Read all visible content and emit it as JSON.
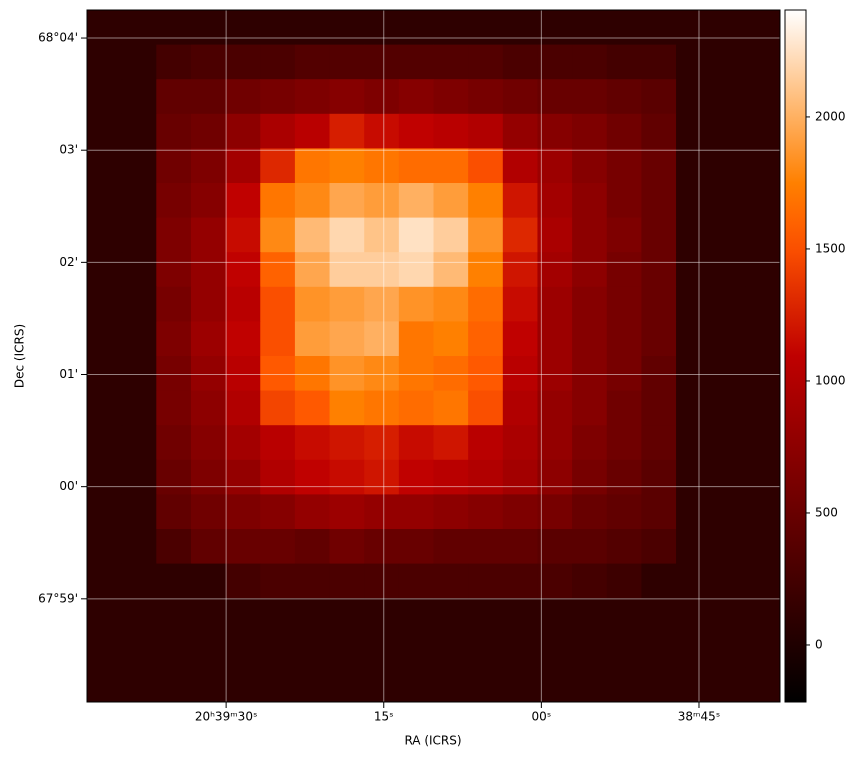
{
  "chart_data": {
    "type": "heatmap",
    "xlabel": "RA (ICRS)",
    "ylabel": "Dec (ICRS)",
    "colormap": "gist_heat",
    "grid": true,
    "xlim": [
      103.24,
      37.29
    ],
    "xticks": [
      {
        "value": 90,
        "label": "20ʰ39ᵐ30ˢ"
      },
      {
        "value": 75,
        "label": "15ˢ"
      },
      {
        "value": 60,
        "label": "00ˢ"
      },
      {
        "value": 45,
        "label": "38ᵐ45ˢ"
      }
    ],
    "ylim": [
      -1.92,
      4.25
    ],
    "yticks": [
      {
        "value": 4,
        "label": "68°04'"
      },
      {
        "value": 3,
        "label": "03'"
      },
      {
        "value": 2,
        "label": "02'"
      },
      {
        "value": 1,
        "label": "01'"
      },
      {
        "value": 0,
        "label": "00'"
      },
      {
        "value": -1,
        "label": "67°59'"
      }
    ],
    "zlim": [
      -216,
      2405
    ],
    "zticks": [
      0,
      500,
      1000,
      1500,
      2000
    ],
    "z": [
      [
        100,
        100,
        100,
        100,
        100,
        100,
        100,
        100,
        100,
        100,
        100,
        100,
        100,
        100,
        100,
        100,
        100,
        100,
        100,
        100
      ],
      [
        100,
        100,
        250,
        300,
        300,
        300,
        350,
        350,
        350,
        350,
        350,
        350,
        300,
        300,
        300,
        250,
        250,
        100,
        100,
        100
      ],
      [
        100,
        100,
        450,
        450,
        550,
        600,
        650,
        700,
        650,
        700,
        650,
        600,
        550,
        500,
        500,
        450,
        400,
        100,
        100,
        100
      ],
      [
        100,
        100,
        500,
        550,
        750,
        950,
        1050,
        1250,
        1150,
        1100,
        1050,
        1000,
        800,
        700,
        650,
        550,
        450,
        100,
        100,
        100
      ],
      [
        100,
        100,
        550,
        650,
        900,
        1300,
        1700,
        1750,
        1700,
        1650,
        1650,
        1500,
        1000,
        850,
        700,
        600,
        500,
        100,
        100,
        100
      ],
      [
        100,
        100,
        600,
        700,
        1100,
        1700,
        1800,
        1950,
        1900,
        2000,
        1900,
        1750,
        1200,
        900,
        750,
        600,
        500,
        100,
        100,
        100
      ],
      [
        100,
        100,
        650,
        800,
        1150,
        1800,
        2050,
        2200,
        2100,
        2250,
        2150,
        1850,
        1300,
        950,
        750,
        650,
        500,
        100,
        100,
        100
      ],
      [
        100,
        100,
        650,
        800,
        1100,
        1600,
        1950,
        2150,
        2150,
        2200,
        2050,
        1750,
        1200,
        900,
        750,
        600,
        500,
        100,
        100,
        100
      ],
      [
        100,
        100,
        600,
        800,
        1050,
        1500,
        1850,
        1900,
        1950,
        1850,
        1800,
        1650,
        1150,
        850,
        700,
        600,
        500,
        100,
        100,
        100
      ],
      [
        100,
        100,
        650,
        850,
        1100,
        1500,
        1900,
        1950,
        2000,
        1700,
        1750,
        1600,
        1100,
        850,
        700,
        600,
        500,
        100,
        100,
        100
      ],
      [
        100,
        100,
        600,
        800,
        1050,
        1550,
        1700,
        1850,
        1800,
        1700,
        1650,
        1550,
        1050,
        850,
        700,
        600,
        450,
        100,
        100,
        100
      ],
      [
        100,
        100,
        600,
        750,
        1000,
        1450,
        1550,
        1750,
        1700,
        1650,
        1700,
        1500,
        1000,
        800,
        700,
        550,
        450,
        100,
        100,
        100
      ],
      [
        100,
        100,
        550,
        700,
        900,
        1050,
        1150,
        1200,
        1250,
        1150,
        1200,
        1050,
        950,
        800,
        650,
        550,
        450,
        100,
        100,
        100
      ],
      [
        100,
        100,
        500,
        650,
        800,
        1000,
        1100,
        1150,
        1200,
        1100,
        1050,
        1000,
        900,
        750,
        600,
        500,
        400,
        100,
        100,
        100
      ],
      [
        100,
        100,
        450,
        550,
        650,
        700,
        800,
        850,
        800,
        800,
        750,
        700,
        650,
        600,
        500,
        450,
        400,
        100,
        100,
        100
      ],
      [
        100,
        100,
        300,
        450,
        500,
        500,
        450,
        550,
        500,
        500,
        450,
        450,
        450,
        400,
        400,
        350,
        300,
        100,
        100,
        100
      ],
      [
        100,
        100,
        100,
        100,
        250,
        300,
        300,
        300,
        300,
        300,
        300,
        300,
        300,
        300,
        250,
        200,
        100,
        100,
        100,
        100
      ],
      [
        100,
        100,
        100,
        100,
        100,
        100,
        100,
        100,
        100,
        100,
        100,
        100,
        100,
        100,
        100,
        100,
        100,
        100,
        100,
        100
      ],
      [
        100,
        100,
        100,
        100,
        100,
        100,
        100,
        100,
        100,
        100,
        100,
        100,
        100,
        100,
        100,
        100,
        100,
        100,
        100,
        100
      ],
      [
        100,
        100,
        100,
        100,
        100,
        100,
        100,
        100,
        100,
        100,
        100,
        100,
        100,
        100,
        100,
        100,
        100,
        100,
        100,
        100
      ]
    ]
  }
}
